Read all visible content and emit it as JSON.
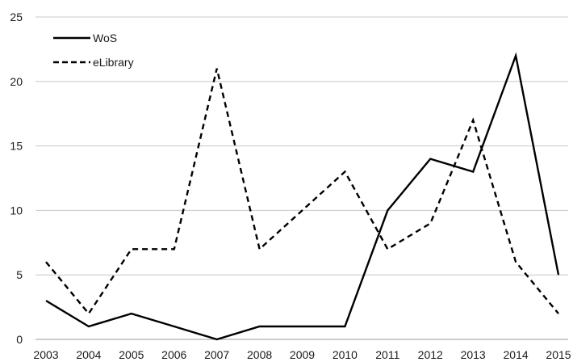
{
  "chart_data": {
    "type": "line",
    "title": "",
    "xlabel": "",
    "ylabel": "",
    "x": [
      "2003",
      "2004",
      "2005",
      "2006",
      "2007",
      "2008",
      "2009",
      "2010",
      "2011",
      "2012",
      "2013",
      "2014",
      "2015"
    ],
    "ylim": [
      0,
      25
    ],
    "yticks": [
      "0",
      "5",
      "10",
      "15",
      "20",
      "25"
    ],
    "grid": "horizontal",
    "legend": "top-left",
    "series": [
      {
        "name": "WoS",
        "style": "solid",
        "color": "#000000",
        "values": [
          3,
          1,
          2,
          1,
          0,
          1,
          1,
          1,
          10,
          14,
          13,
          22,
          5
        ]
      },
      {
        "name": "eLibrary",
        "style": "dashed",
        "color": "#000000",
        "values": [
          6,
          2,
          7,
          7,
          21,
          7,
          10,
          13,
          7,
          9,
          17,
          6,
          2
        ]
      }
    ]
  }
}
